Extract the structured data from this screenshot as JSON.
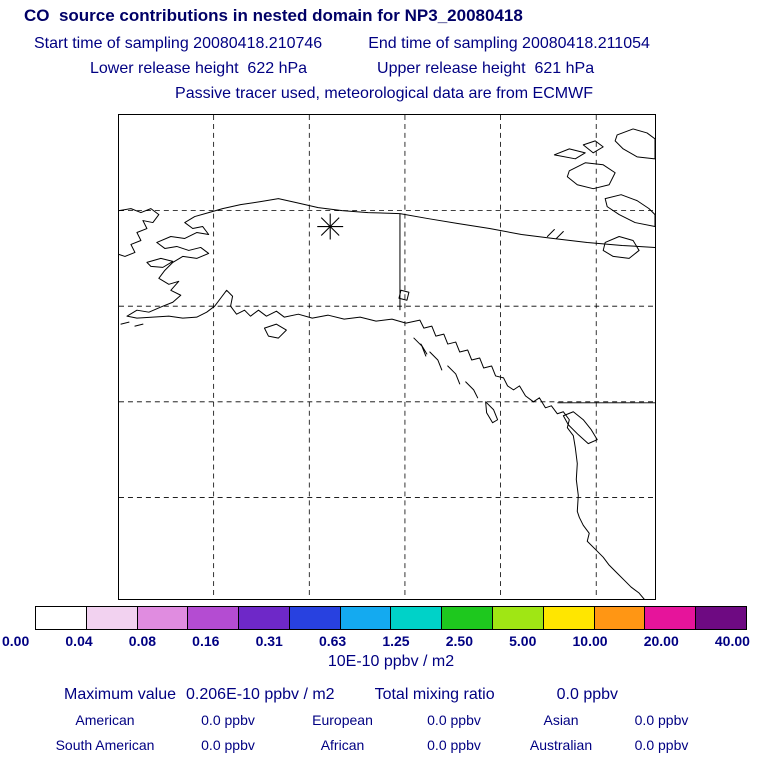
{
  "title": "CO  source contributions in nested domain for NP3_20080418",
  "header": {
    "start_time": "Start time of sampling 20080418.210746",
    "end_time": "End time of sampling 20080418.211054",
    "lower_release": "Lower release height  622 hPa",
    "upper_release": "Upper release height  621 hPa",
    "tracer_note": "Passive tracer used, meteorological data are from ECMWF"
  },
  "colorbar": {
    "levels": [
      "0.00",
      "0.04",
      "0.08",
      "0.16",
      "0.31",
      "0.63",
      "1.25",
      "2.50",
      "5.00",
      "10.00",
      "20.00",
      "40.00"
    ],
    "colors": [
      "#ffffff",
      "#f2d2f0",
      "#e08ce0",
      "#b44cd2",
      "#6e28c8",
      "#2841e0",
      "#14aaf0",
      "#00d2c8",
      "#1ec81e",
      "#a0e614",
      "#ffe600",
      "#ff9614",
      "#e6149b",
      "#6e0a82"
    ],
    "units": "10E-10 ppbv / m2"
  },
  "stats": {
    "maximum_label": "Maximum value",
    "maximum_value": "0.206E-10 ppbv / m2",
    "total_label": "Total mixing ratio",
    "total_value": "0.0 ppbv",
    "regions": [
      {
        "label": "American",
        "value": "0.0 ppbv"
      },
      {
        "label": "European",
        "value": "0.0 ppbv"
      },
      {
        "label": "Asian",
        "value": "0.0 ppbv"
      },
      {
        "label": "South American",
        "value": "0.0 ppbv"
      },
      {
        "label": "African",
        "value": "0.0 ppbv"
      },
      {
        "label": "Australian",
        "value": "0.0 ppbv"
      }
    ]
  },
  "chart_data": {
    "type": "heatmap",
    "title": "CO source contributions in nested domain for NP3_20080418",
    "subtitle": "Passive tracer used, meteorological data are from ECMWF",
    "map_region": "Alaska / Yukon / NW North America with Arctic islands and US west coast",
    "release_marker": {
      "symbol": "asterisk",
      "note": "release location plotted in northern Alaska/Yukon area"
    },
    "colorbar_levels": [
      0.0,
      0.04,
      0.08,
      0.16,
      0.31,
      0.63,
      1.25,
      2.5,
      5.0,
      10.0,
      20.0,
      40.0
    ],
    "colorbar_units": "10E-10 ppbv / m2",
    "field_note": "no visible shaded contribution cells (values below first level)",
    "maximum_value": "0.206E-10 ppbv / m2",
    "total_mixing_ratio_ppbv": 0.0,
    "regional_contributions_ppbv": {
      "American": 0.0,
      "European": 0.0,
      "Asian": 0.0,
      "South American": 0.0,
      "African": 0.0,
      "Australian": 0.0
    },
    "sampling": {
      "start": "20080418.210746",
      "end": "20080418.211054"
    },
    "release_heights_hPa": {
      "lower": 622,
      "upper": 621
    }
  }
}
